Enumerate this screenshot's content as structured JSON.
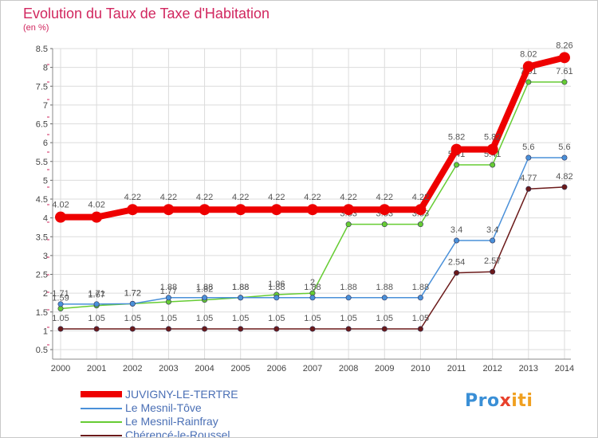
{
  "header": {
    "title": "Evolution du Taux de Taxe d'Habitation",
    "ylabel": "(en %)"
  },
  "logo": {
    "text_p": "Pro",
    "text_x": "x",
    "text_i": "iti"
  },
  "chart_data": {
    "type": "line",
    "title": "Evolution du Taux de Taxe d'Habitation",
    "xlabel": "",
    "ylabel": "(en %)",
    "ylim": [
      0.5,
      8.5
    ],
    "yticks": [
      "0.5",
      "1",
      "1.5",
      "2",
      "2.5",
      "3",
      "3.5",
      "4",
      "4.5",
      "5",
      "5.5",
      "6",
      "6.5",
      "7",
      "7.5",
      "8",
      "8.5"
    ],
    "categories": [
      "2000",
      "2001",
      "2002",
      "2003",
      "2004",
      "2005",
      "2006",
      "2007",
      "2008",
      "2009",
      "2010",
      "2011",
      "2012",
      "2013",
      "2014"
    ],
    "grid": true,
    "legend_position": "bottom-left",
    "series": [
      {
        "name": "Chérencé-le-Roussel",
        "color": "#6b1a1a",
        "values": [
          1.05,
          1.05,
          1.05,
          1.05,
          1.05,
          1.05,
          1.05,
          1.05,
          1.05,
          1.05,
          1.05,
          2.54,
          2.57,
          4.77,
          4.82
        ],
        "labels": [
          "1.05",
          "1.05",
          "1.05",
          "1.05",
          "1.05",
          "1.05",
          "1.05",
          "1.05",
          "1.05",
          "1.05",
          "1.05",
          "2.54",
          "2.57",
          "4.77",
          "4.82"
        ]
      },
      {
        "name": "Le Mesnil-Rainfray",
        "color": "#66cc33",
        "values": [
          1.59,
          1.67,
          1.72,
          1.77,
          1.82,
          1.88,
          1.96,
          2,
          3.83,
          3.83,
          3.83,
          5.41,
          5.41,
          7.61,
          7.61
        ],
        "labels": [
          "1.59",
          "1.67",
          "1.72",
          "1.77",
          "1.82",
          "1.88",
          "1.96",
          "2",
          "3.83",
          "3.83",
          "3.83",
          "5.41",
          "5.41",
          "7.61",
          "7.61"
        ]
      },
      {
        "name": "Le Mesnil-Tôve",
        "color": "#4a90d9",
        "values": [
          1.71,
          1.71,
          1.72,
          1.88,
          1.88,
          1.88,
          1.88,
          1.88,
          1.88,
          1.88,
          1.88,
          3.4,
          3.4,
          5.6,
          5.6
        ],
        "labels": [
          "1.71",
          "1.71",
          "1.72",
          "1.88",
          "1.88",
          "1.88",
          "1.88",
          "1.88",
          "1.88",
          "1.88",
          "1.88",
          "3.4",
          "3.4",
          "5.6",
          "5.6"
        ]
      },
      {
        "name": "JUVIGNY-LE-TERTRE",
        "color": "#ee0000",
        "values": [
          4.02,
          4.02,
          4.22,
          4.22,
          4.22,
          4.22,
          4.22,
          4.22,
          4.22,
          4.22,
          4.22,
          5.82,
          5.82,
          8.02,
          8.26
        ],
        "labels": [
          "4.02",
          "4.02",
          "4.22",
          "4.22",
          "4.22",
          "4.22",
          "4.22",
          "4.22",
          "4.22",
          "4.22",
          "4.22",
          "5.82",
          "5.82",
          "8.02",
          "8.26"
        ]
      }
    ],
    "legend": [
      {
        "name": "JUVIGNY-LE-TERTRE",
        "color": "#ee0000",
        "text_color": "#4a6fb5"
      },
      {
        "name": "Le Mesnil-Tôve",
        "color": "#4a90d9",
        "text_color": "#4a6fb5"
      },
      {
        "name": "Le Mesnil-Rainfray",
        "color": "#66cc33",
        "text_color": "#4a6fb5"
      },
      {
        "name": "Chérencé-le-Roussel",
        "color": "#6b1a1a",
        "text_color": "#4a6fb5"
      }
    ]
  }
}
